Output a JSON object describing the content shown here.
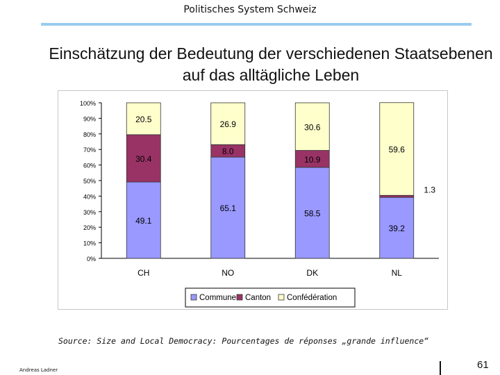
{
  "header": {
    "title": "Politisches System Schweiz"
  },
  "slide": {
    "title": "Einschätzung der Bedeutung der verschiedenen Staatsebenen auf das alltägliche Leben"
  },
  "chart_data": {
    "type": "bar",
    "stacked": true,
    "percent": true,
    "categories": [
      "CH",
      "NO",
      "DK",
      "NL"
    ],
    "series": [
      {
        "name": "Commune",
        "color": "#9999ff",
        "values": [
          49.1,
          65.1,
          58.5,
          39.2
        ]
      },
      {
        "name": "Canton",
        "color": "#993366",
        "values": [
          30.4,
          8.0,
          10.9,
          1.3
        ]
      },
      {
        "name": "Confédération",
        "color": "#ffffcc",
        "values": [
          20.5,
          26.9,
          30.6,
          59.6
        ]
      }
    ],
    "value_labels": [
      [
        "49.1",
        "65.1",
        "58.5",
        "39.2"
      ],
      [
        "30.4",
        "8.0",
        "10.9",
        "1.3"
      ],
      [
        "20.5",
        "26.9",
        "30.6",
        "59.6"
      ]
    ],
    "ylim": [
      0,
      100
    ],
    "yticks": [
      "0%",
      "10%",
      "20%",
      "30%",
      "40%",
      "50%",
      "60%",
      "70%",
      "80%",
      "90%",
      "100%"
    ],
    "legend_position": "bottom",
    "grid": false
  },
  "source_note": "Source: Size and Local Democracy: Pourcentages de réponses „grande influence“",
  "footer": {
    "author": "Andreas Ladner",
    "page_number": "61"
  }
}
